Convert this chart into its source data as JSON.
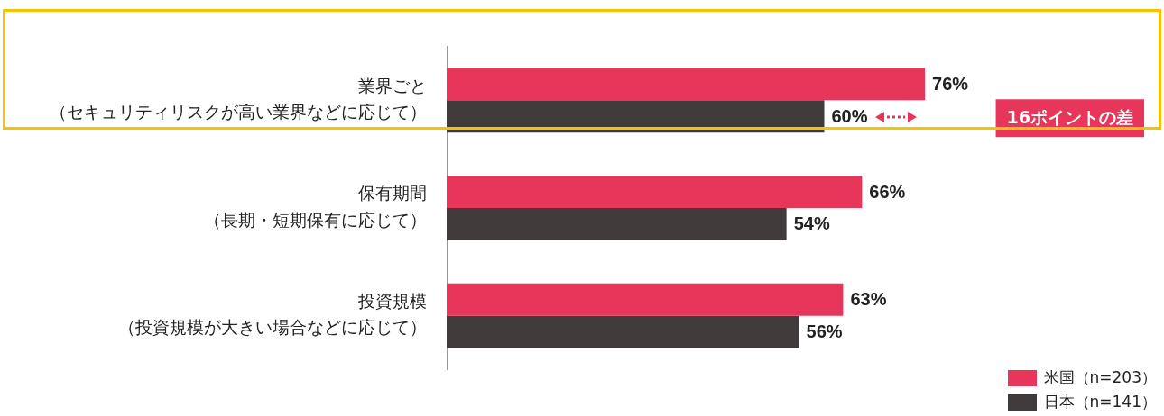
{
  "chart_data": {
    "type": "bar",
    "orientation": "horizontal",
    "categories": [
      "業界ごと（セキュリティリスクが高い業界などに応じて）",
      "保有期間（長期・短期保有に応じて）",
      "投資規模（投資規模が大きい場合などに応じて）"
    ],
    "series": [
      {
        "name": "米国（n=203）",
        "color": "#e8365a",
        "values": [
          76,
          66,
          63
        ],
        "value_labels": [
          "76%",
          "66%",
          "63%"
        ]
      },
      {
        "name": "日本（n=141）",
        "color": "#403b3a",
        "values": [
          60,
          54,
          56
        ],
        "value_labels": [
          "60%",
          "54%",
          "56%"
        ]
      }
    ],
    "tick_labels": "y",
    "grid": false,
    "legend": "bottom right",
    "annotations": [
      "16ポイントの差"
    ]
  }
}
